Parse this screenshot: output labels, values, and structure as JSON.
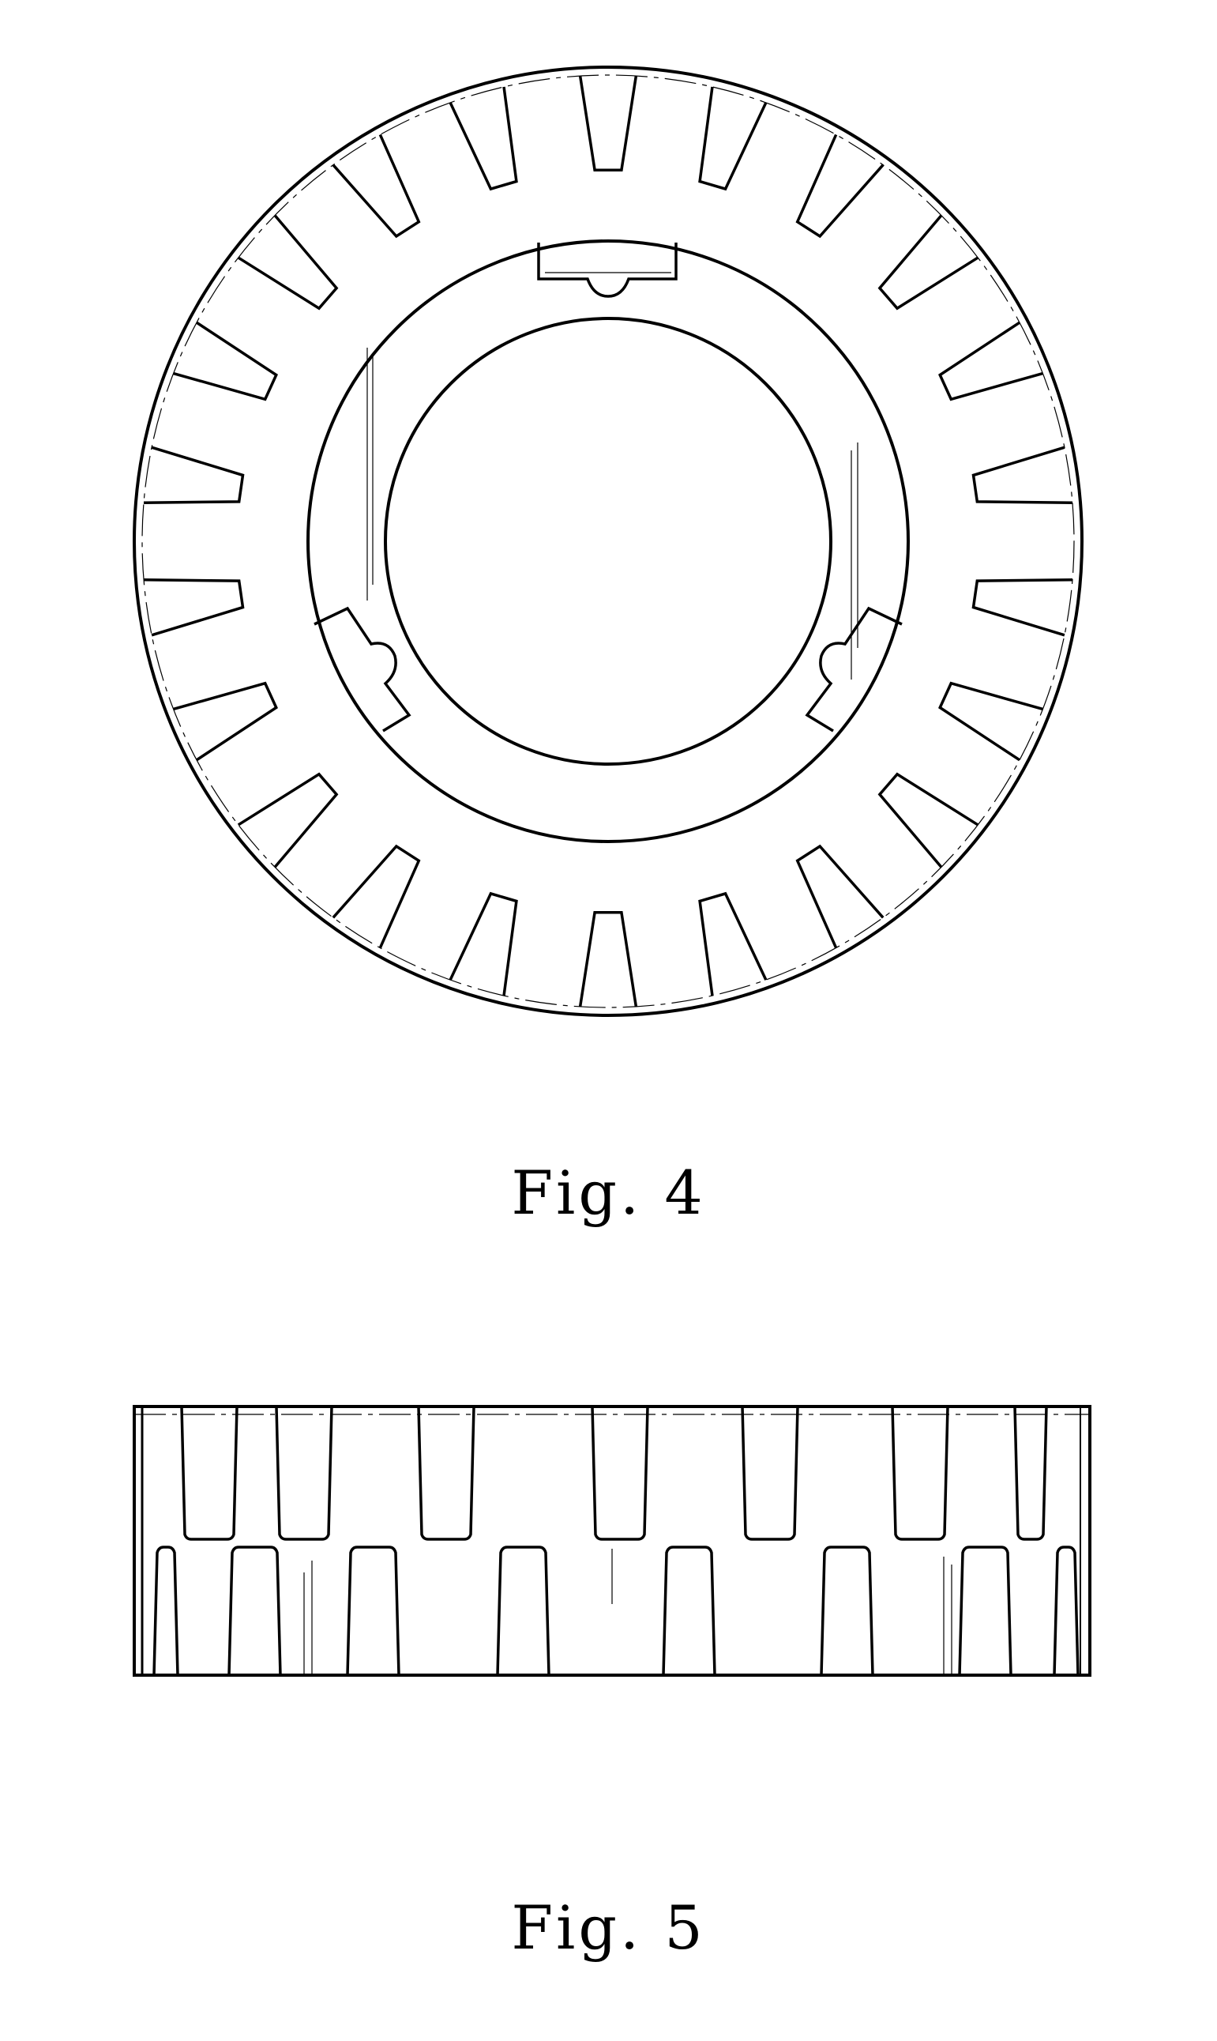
{
  "figures": [
    {
      "caption": "Fig. 4"
    },
    {
      "caption": "Fig. 5"
    }
  ]
}
